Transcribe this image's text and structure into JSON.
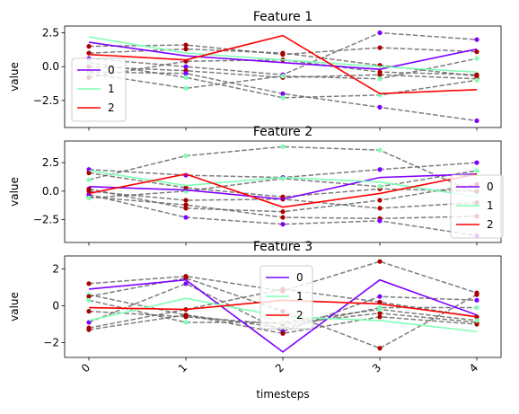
{
  "chart_data": [
    {
      "type": "line",
      "title": "Feature 1",
      "ylabel": "value",
      "xlabel": "",
      "x": [
        0,
        1,
        2,
        3,
        4
      ],
      "ylim": [
        -4.5,
        3.0
      ],
      "yticks": [
        -2.5,
        0.0,
        2.5
      ],
      "ytick_labels": [
        "−2.5",
        "0.0",
        "2.5"
      ],
      "legend_placement": "lower-left",
      "series": [
        {
          "name": "0",
          "color": "#7f00ff",
          "values": [
            1.8,
            0.8,
            0.3,
            -0.2,
            1.3
          ]
        },
        {
          "name": "1",
          "color": "#80ffb4",
          "values": [
            2.2,
            1.0,
            0.5,
            0.0,
            -0.4
          ]
        },
        {
          "name": "2",
          "color": "#ff0000",
          "values": [
            0.9,
            0.5,
            2.3,
            -2.0,
            -1.7
          ]
        }
      ],
      "background_series": [
        {
          "values": [
            1.5,
            1.6,
            0.9,
            1.4,
            1.1
          ],
          "marker": "#aa0000"
        },
        {
          "values": [
            1.0,
            1.3,
            1.0,
            0.1,
            -0.7
          ],
          "marker": "#aa0000"
        },
        {
          "values": [
            0.6,
            0.0,
            -0.6,
            2.5,
            2.0
          ],
          "marker": "#7f00ff"
        },
        {
          "values": [
            0.0,
            -0.3,
            -0.8,
            -0.6,
            -0.9
          ],
          "marker": "#aa0000"
        },
        {
          "values": [
            -0.4,
            -0.5,
            -2.0,
            -3.0,
            -4.0
          ],
          "marker": "#7f00ff"
        },
        {
          "values": [
            -0.5,
            -1.6,
            -0.7,
            -0.9,
            0.6
          ],
          "marker": "#80ffb4"
        },
        {
          "values": [
            0.3,
            -0.8,
            -2.3,
            -2.1,
            -1.0
          ],
          "marker": "#80ffb4"
        },
        {
          "values": [
            -0.8,
            0.4,
            0.5,
            -0.4,
            -0.6
          ],
          "marker": "#aa0000"
        }
      ]
    },
    {
      "type": "line",
      "title": "Feature 2",
      "ylabel": "value",
      "xlabel": "",
      "x": [
        0,
        1,
        2,
        3,
        4
      ],
      "ylim": [
        -4.5,
        4.4
      ],
      "yticks": [
        -2.5,
        0.0,
        2.5
      ],
      "ytick_labels": [
        "−2.5",
        "0.0",
        "2.5"
      ],
      "legend_placement": "center-right",
      "series": [
        {
          "name": "0",
          "color": "#7f00ff",
          "values": [
            0.4,
            0.1,
            -0.7,
            1.2,
            1.5
          ]
        },
        {
          "name": "1",
          "color": "#80ffb4",
          "values": [
            1.8,
            0.5,
            1.2,
            0.8,
            -0.5
          ]
        },
        {
          "name": "2",
          "color": "#ff0000",
          "values": [
            -0.2,
            1.5,
            -1.4,
            -0.2,
            1.5
          ]
        }
      ],
      "background_series": [
        {
          "values": [
            1.0,
            3.1,
            3.9,
            3.6,
            -0.2
          ],
          "marker": "#80ffb4"
        },
        {
          "values": [
            1.9,
            1.4,
            1.2,
            1.9,
            2.5
          ],
          "marker": "#7f00ff"
        },
        {
          "values": [
            1.6,
            0.3,
            -0.5,
            0.2,
            0.0
          ],
          "marker": "#aa0000"
        },
        {
          "values": [
            0.0,
            -0.8,
            -0.7,
            -1.5,
            -1.0
          ],
          "marker": "#aa0000"
        },
        {
          "values": [
            -0.5,
            -1.2,
            -2.3,
            -2.4,
            -2.2
          ],
          "marker": "#aa0000"
        },
        {
          "values": [
            -0.3,
            -2.3,
            -2.9,
            -2.6,
            -3.9
          ],
          "marker": "#7f00ff"
        },
        {
          "values": [
            0.2,
            -1.5,
            -1.8,
            -0.8,
            0.6
          ],
          "marker": "#aa0000"
        },
        {
          "values": [
            -0.6,
            0.0,
            1.1,
            0.4,
            1.8
          ],
          "marker": "#80ffb4"
        }
      ]
    },
    {
      "type": "line",
      "title": "Feature 3",
      "ylabel": "value",
      "xlabel": "timesteps",
      "x": [
        0,
        1,
        2,
        3,
        4
      ],
      "xtick_labels": [
        "0",
        "1",
        "2",
        "3",
        "4"
      ],
      "ylim": [
        -2.8,
        2.7
      ],
      "yticks": [
        -2,
        0,
        2
      ],
      "ytick_labels": [
        "−2",
        "0",
        "2"
      ],
      "legend_placement": "upper-center",
      "series": [
        {
          "name": "0",
          "color": "#7f00ff",
          "values": [
            0.9,
            1.4,
            -2.5,
            1.4,
            -0.5
          ]
        },
        {
          "name": "1",
          "color": "#80ffb4",
          "values": [
            -0.8,
            0.4,
            -0.6,
            -0.8,
            -1.4
          ]
        },
        {
          "name": "2",
          "color": "#ff0000",
          "values": [
            -0.1,
            -0.2,
            0.3,
            0.1,
            -0.6
          ]
        }
      ],
      "background_series": [
        {
          "values": [
            1.2,
            1.6,
            0.8,
            2.4,
            0.7
          ],
          "marker": "#aa0000"
        },
        {
          "values": [
            0.6,
            -0.5,
            -1.2,
            -0.1,
            -0.1
          ],
          "marker": "#80ffb4"
        },
        {
          "values": [
            0.5,
            1.5,
            -0.3,
            -2.3,
            0.6
          ],
          "marker": "#aa0000"
        },
        {
          "values": [
            -0.3,
            -0.6,
            -1.0,
            -0.4,
            -0.9
          ],
          "marker": "#aa0000"
        },
        {
          "values": [
            -1.2,
            -0.2,
            0.9,
            0.2,
            -0.6
          ],
          "marker": "#aa0000"
        },
        {
          "values": [
            -0.9,
            1.2,
            -1.4,
            0.5,
            0.3
          ],
          "marker": "#7f00ff"
        },
        {
          "values": [
            -1.3,
            -0.5,
            -1.5,
            -0.6,
            -1.0
          ],
          "marker": "#aa0000"
        },
        {
          "values": [
            0.3,
            -0.9,
            -0.9,
            -0.2,
            -0.8
          ],
          "marker": "#80ffb4"
        }
      ]
    }
  ],
  "style": {
    "background_line_color": "#666666",
    "frame_color": "#000000"
  }
}
